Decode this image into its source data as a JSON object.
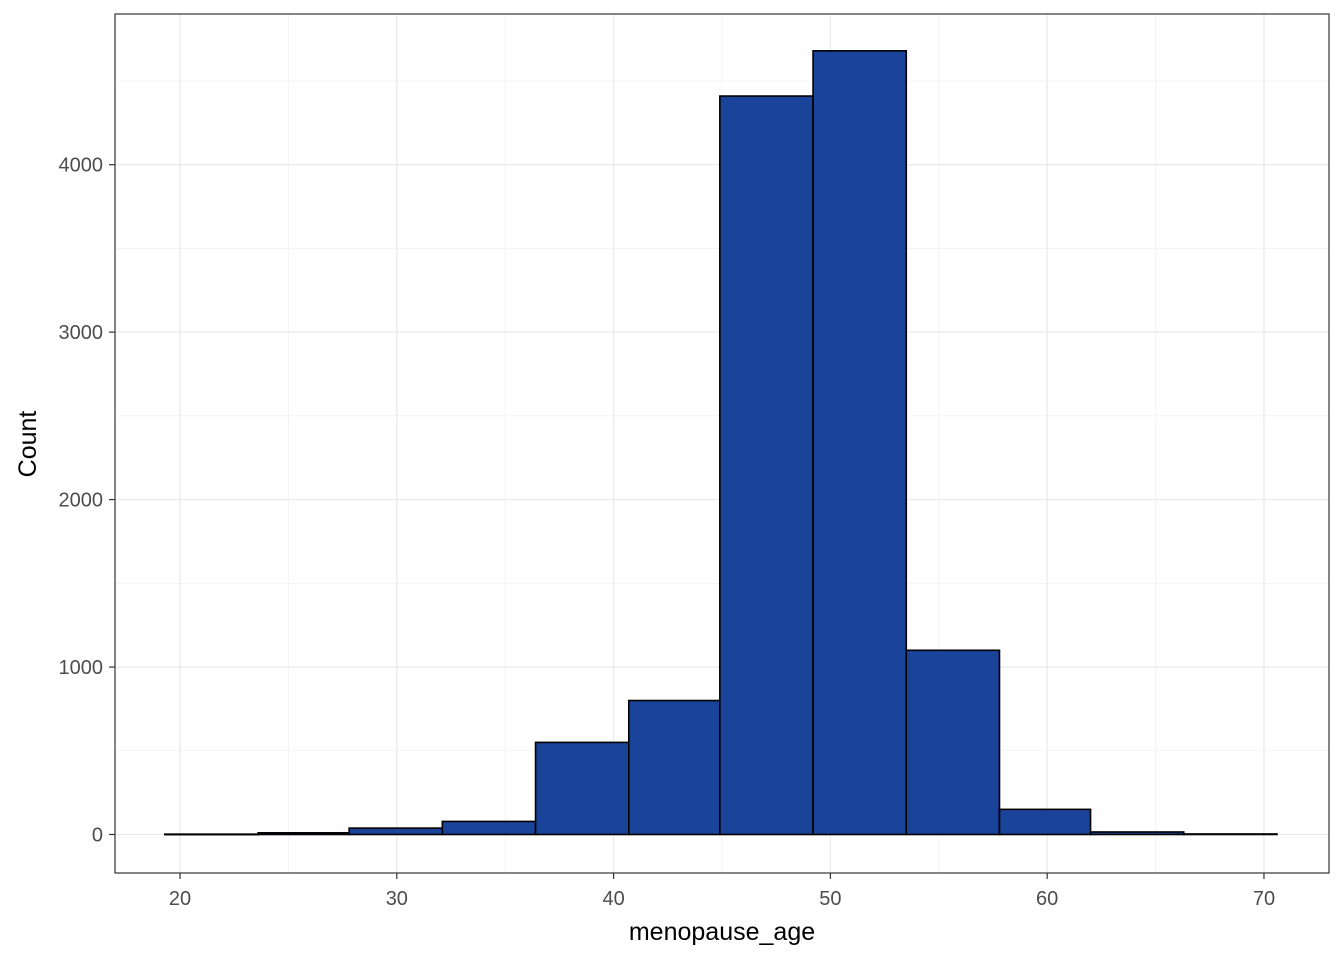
{
  "chart_data": {
    "type": "bar",
    "subtype": "histogram",
    "title": "",
    "xlabel": "menopause_age",
    "ylabel": "Count",
    "xlim": [
      17,
      73
    ],
    "ylim": [
      -230,
      4900
    ],
    "x_ticks": [
      20,
      30,
      40,
      50,
      60,
      70
    ],
    "y_ticks": [
      0,
      1000,
      2000,
      3000,
      4000
    ],
    "grid": true,
    "theme": "bw",
    "fill_color": "#1A4499",
    "edge_color": "#000000",
    "bins": [
      {
        "x_start": 19.3,
        "x_end": 23.6,
        "count": 2
      },
      {
        "x_start": 23.6,
        "x_end": 27.8,
        "count": 10
      },
      {
        "x_start": 27.8,
        "x_end": 32.1,
        "count": 38
      },
      {
        "x_start": 32.1,
        "x_end": 36.4,
        "count": 78
      },
      {
        "x_start": 36.4,
        "x_end": 40.7,
        "count": 550
      },
      {
        "x_start": 40.7,
        "x_end": 44.9,
        "count": 800
      },
      {
        "x_start": 44.9,
        "x_end": 49.2,
        "count": 4410
      },
      {
        "x_start": 49.2,
        "x_end": 53.5,
        "count": 4680
      },
      {
        "x_start": 53.5,
        "x_end": 57.8,
        "count": 1100
      },
      {
        "x_start": 57.8,
        "x_end": 62.0,
        "count": 150
      },
      {
        "x_start": 62.0,
        "x_end": 66.3,
        "count": 15
      },
      {
        "x_start": 66.3,
        "x_end": 70.6,
        "count": 3
      }
    ]
  }
}
